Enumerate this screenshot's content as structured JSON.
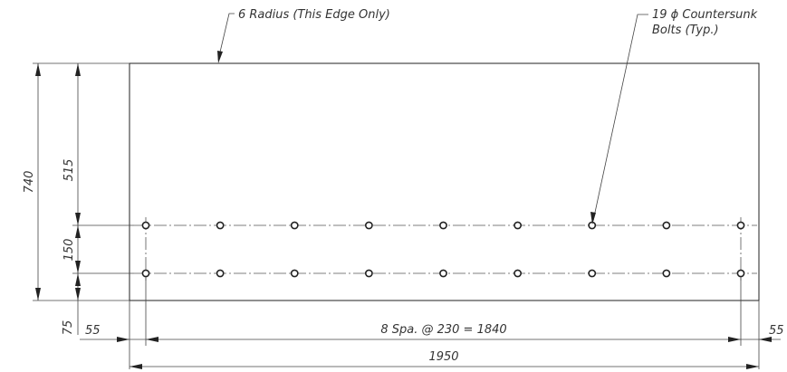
{
  "notes": {
    "edge_radius": "6 Radius (This Edge Only)",
    "bolts_line1": "19 ϕ Countersunk",
    "bolts_line2": "Bolts (Typ.)"
  },
  "dimensions": {
    "overall_height": "740",
    "upper_height": "515",
    "row_spacing": "150",
    "lower_height": "75",
    "left_edge": "55",
    "bolt_spacing": "8 Spa. @ 230 = 1840",
    "right_edge": "55",
    "overall_width": "1950"
  },
  "plate": {
    "bolt_columns": 9,
    "bolt_rows": 2
  }
}
